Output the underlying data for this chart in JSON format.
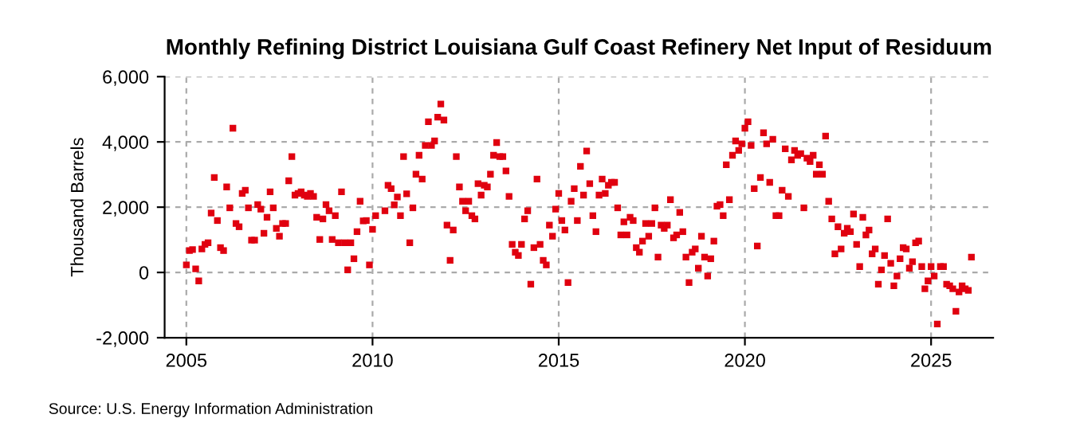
{
  "chart_data": {
    "type": "scatter",
    "title": "Monthly Refining District Louisiana Gulf Coast Refinery Net Input of Residuum",
    "ylabel": "Thousand Barrels",
    "annotations": [
      "Source: U.S. Energy Information Administration"
    ],
    "marker": "square",
    "grid": true,
    "xlim": [
      "2004-06",
      "2026-09"
    ],
    "xticks": [
      "2005",
      "2010",
      "2015",
      "2020",
      "2025"
    ],
    "ylim": [
      -2000,
      6000
    ],
    "yticks": [
      {
        "value": -2000,
        "label": "-2,000"
      },
      0,
      {
        "value": 2000,
        "label": "2,000"
      },
      {
        "value": 4000,
        "label": "4,000"
      },
      {
        "value": 6000,
        "label": "6,000"
      }
    ],
    "series": [
      {
        "color": "#e0000f",
        "x": [
          "2005-01",
          "2005-02",
          "2005-03",
          "2005-04",
          "2005-05",
          "2005-06",
          "2005-07",
          "2005-08",
          "2005-09",
          "2005-10",
          "2005-11",
          "2005-12",
          "2006-01",
          "2006-02",
          "2006-03",
          "2006-04",
          "2006-05",
          "2006-06",
          "2006-07",
          "2006-08",
          "2006-09",
          "2006-10",
          "2006-11",
          "2006-12",
          "2007-01",
          "2007-02",
          "2007-03",
          "2007-04",
          "2007-05",
          "2007-06",
          "2007-07",
          "2007-08",
          "2007-09",
          "2007-10",
          "2007-11",
          "2007-12",
          "2008-01",
          "2008-02",
          "2008-03",
          "2008-04",
          "2008-05",
          "2008-06",
          "2008-07",
          "2008-08",
          "2008-09",
          "2008-10",
          "2008-11",
          "2008-12",
          "2009-01",
          "2009-02",
          "2009-03",
          "2009-04",
          "2009-05",
          "2009-06",
          "2009-07",
          "2009-08",
          "2009-09",
          "2009-10",
          "2009-11",
          "2009-12",
          "2010-01",
          "2010-02"
        ],
        "values": [
          230,
          670,
          700,
          110,
          -260,
          720,
          860,
          910,
          1820,
          2910,
          1590,
          760,
          670,
          2620,
          1980,
          4420,
          1500,
          1400,
          2420,
          2520,
          1980,
          990,
          990,
          2080,
          1940,
          1200,
          1690,
          2470,
          1980,
          1350,
          1110,
          1500,
          1500,
          2810,
          3550,
          2370,
          2420,
          2470,
          2370,
          2330,
          2420,
          2330,
          1690,
          1010,
          1640,
          2080,
          1890,
          1010,
          1740,
          910,
          2470,
          910,
          80,
          910,
          420,
          1250,
          2180,
          1580,
          1590,
          230,
          1320,
          1740
        ]
      },
      {
        "color": "#e0000f",
        "x": [
          "2010-05",
          "2010-06",
          "2010-07",
          "2010-08",
          "2010-09",
          "2010-10",
          "2010-11",
          "2010-12",
          "2011-01",
          "2011-02",
          "2011-03",
          "2011-04",
          "2011-05",
          "2011-06",
          "2011-07",
          "2011-08",
          "2011-09",
          "2011-10",
          "2011-11",
          "2011-12",
          "2012-01",
          "2012-02",
          "2012-03",
          "2012-04",
          "2012-05",
          "2012-06",
          "2012-07",
          "2012-08",
          "2012-09",
          "2012-10",
          "2012-11",
          "2012-12",
          "2013-01",
          "2013-02",
          "2013-03",
          "2013-04",
          "2013-05",
          "2013-06",
          "2013-07",
          "2013-08",
          "2013-09",
          "2013-10",
          "2013-11",
          "2013-12",
          "2014-01",
          "2014-02",
          "2014-03",
          "2014-04",
          "2014-05",
          "2014-06",
          "2014-07",
          "2014-08",
          "2014-09",
          "2014-10",
          "2014-11",
          "2014-12",
          "2015-01",
          "2015-02",
          "2015-03",
          "2015-04",
          "2015-05",
          "2015-06",
          "2015-07",
          "2015-08",
          "2015-09",
          "2015-10"
        ],
        "values": [
          1890,
          2670,
          2570,
          2070,
          2310,
          1740,
          3550,
          2410,
          910,
          1980,
          3010,
          3590,
          2860,
          3890,
          4620,
          3890,
          4030,
          4760,
          5160,
          4670,
          1450,
          370,
          1300,
          3550,
          2620,
          2180,
          1890,
          2180,
          1740,
          1640,
          2720,
          2370,
          2670,
          2620,
          3010,
          3590,
          3980,
          3550,
          3550,
          3110,
          2330,
          860,
          620,
          520,
          860,
          1640,
          1890,
          -360,
          760,
          2860,
          860,
          370,
          230,
          1450,
          1110,
          1940,
          2420,
          1590,
          1300,
          -310,
          2180,
          2570,
          1590,
          3250,
          2370,
          3720
        ]
      },
      {
        "color": "#e0000f",
        "x": [
          "2015-11",
          "2015-12",
          "2016-01",
          "2016-02",
          "2016-03",
          "2016-04",
          "2016-05",
          "2016-06",
          "2016-07",
          "2016-08",
          "2016-09",
          "2016-10",
          "2016-11",
          "2016-12",
          "2017-01",
          "2017-02",
          "2017-03",
          "2017-04",
          "2017-05",
          "2017-06",
          "2017-07",
          "2017-08",
          "2017-09",
          "2017-10",
          "2017-11",
          "2017-12",
          "2018-01",
          "2018-02",
          "2018-03",
          "2018-04",
          "2018-05",
          "2018-06",
          "2018-07",
          "2018-08",
          "2018-09",
          "2018-10",
          "2018-11",
          "2018-12",
          "2019-01",
          "2019-02",
          "2019-03",
          "2019-04",
          "2019-05",
          "2019-06",
          "2019-07",
          "2019-08",
          "2019-09",
          "2019-10",
          "2019-11",
          "2019-12",
          "2020-01",
          "2020-02",
          "2020-03",
          "2020-04",
          "2020-05",
          "2020-06",
          "2020-07",
          "2020-08",
          "2020-09",
          "2020-10",
          "2020-11",
          "2020-12",
          "2021-01",
          "2021-02",
          "2021-03",
          "2021-04",
          "2021-05"
        ],
        "values": [
          2720,
          1740,
          1250,
          2370,
          2860,
          2420,
          2670,
          2760,
          2760,
          1980,
          1150,
          1550,
          1150,
          1690,
          1590,
          760,
          620,
          960,
          1500,
          1110,
          1500,
          1980,
          470,
          1450,
          1350,
          1450,
          2230,
          1060,
          1150,
          1840,
          1250,
          470,
          -310,
          620,
          720,
          130,
          1110,
          470,
          -110,
          420,
          960,
          2030,
          2080,
          1740,
          3300,
          2230,
          3590,
          4030,
          3740,
          3940,
          4420,
          4620,
          3890,
          2570,
          810,
          2910,
          4280,
          3940,
          2760,
          4080,
          1740,
          1740,
          2520,
          3790,
          2330,
          3450,
          3740
        ]
      },
      {
        "color": "#e0000f",
        "x": [
          "2021-06",
          "2021-07",
          "2021-08",
          "2021-09",
          "2021-10",
          "2021-11",
          "2021-12",
          "2022-01",
          "2022-02",
          "2022-03",
          "2022-04",
          "2022-05",
          "2022-06",
          "2022-07",
          "2022-08",
          "2022-09",
          "2022-10",
          "2022-11",
          "2022-12",
          "2023-01",
          "2023-02",
          "2023-03",
          "2023-04",
          "2023-05",
          "2023-06",
          "2023-07",
          "2023-08",
          "2023-09",
          "2023-10",
          "2023-11",
          "2023-12",
          "2024-01",
          "2024-02",
          "2024-03",
          "2024-04",
          "2024-05",
          "2024-06",
          "2024-07",
          "2024-08",
          "2024-09",
          "2024-10",
          "2024-11",
          "2024-12",
          "2025-01",
          "2025-02",
          "2025-03",
          "2025-04",
          "2025-05",
          "2025-06",
          "2025-07",
          "2025-08",
          "2025-09",
          "2025-10",
          "2025-11",
          "2025-12",
          "2026-01",
          "2026-02"
        ],
        "values": [
          3590,
          3640,
          1980,
          3500,
          3400,
          3590,
          3010,
          3300,
          3010,
          4180,
          2180,
          1640,
          570,
          1400,
          720,
          1200,
          1350,
          1250,
          1790,
          860,
          180,
          1690,
          1150,
          1300,
          570,
          720,
          -360,
          80,
          520,
          1640,
          280,
          -410,
          -110,
          420,
          760,
          720,
          130,
          330,
          910,
          960,
          180,
          -500,
          -260,
          180,
          -110,
          -1580,
          180,
          180,
          -360,
          -410,
          -500,
          -1190,
          -600,
          -410,
          -500,
          -550,
          470
        ]
      }
    ]
  }
}
